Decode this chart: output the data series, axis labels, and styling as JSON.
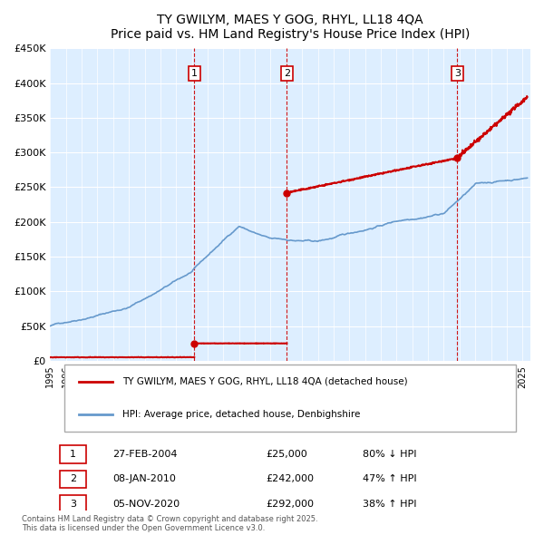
{
  "title": "TY GWILYM, MAES Y GOG, RHYL, LL18 4QA",
  "subtitle": "Price paid vs. HM Land Registry's House Price Index (HPI)",
  "ylabel": "",
  "ylim": [
    0,
    450000
  ],
  "yticks": [
    0,
    50000,
    100000,
    150000,
    200000,
    250000,
    300000,
    350000,
    400000,
    450000
  ],
  "ytick_labels": [
    "£0",
    "£50K",
    "£100K",
    "£150K",
    "£200K",
    "£250K",
    "£300K",
    "£350K",
    "£400K",
    "£450K"
  ],
  "xlim_start": 1995.0,
  "xlim_end": 2025.5,
  "sales": [
    {
      "date_num": 2004.15,
      "price": 25000,
      "label": "1"
    },
    {
      "date_num": 2010.03,
      "price": 242000,
      "label": "2"
    },
    {
      "date_num": 2020.85,
      "price": 292000,
      "label": "3"
    }
  ],
  "sale_annotations": [
    {
      "num": "1",
      "date": "27-FEB-2004",
      "price": "£25,000",
      "pct": "80% ↓ HPI"
    },
    {
      "num": "2",
      "date": "08-JAN-2010",
      "price": "£242,000",
      "pct": "47% ↑ HPI"
    },
    {
      "num": "3",
      "date": "05-NOV-2020",
      "price": "£292,000",
      "pct": "38% ↑ HPI"
    }
  ],
  "red_color": "#cc0000",
  "blue_color": "#6699cc",
  "vline_color": "#cc0000",
  "bg_color": "#ddeeff",
  "plot_bg": "#ffffff",
  "legend_label_red": "TY GWILYM, MAES Y GOG, RHYL, LL18 4QA (detached house)",
  "legend_label_blue": "HPI: Average price, detached house, Denbighshire",
  "footer": "Contains HM Land Registry data © Crown copyright and database right 2025.\nThis data is licensed under the Open Government Licence v3.0."
}
